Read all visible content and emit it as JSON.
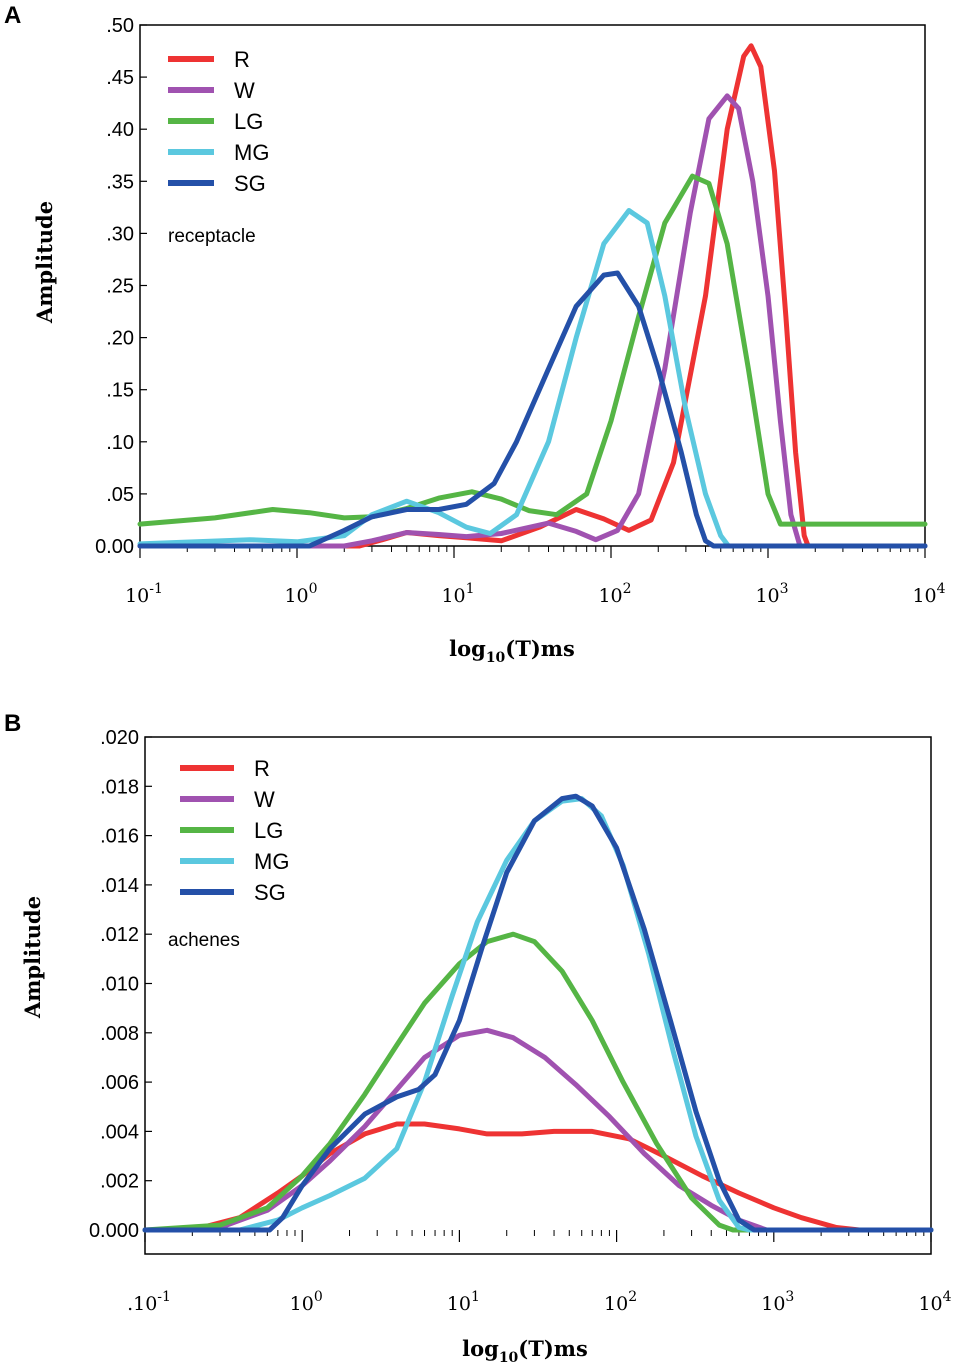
{
  "chart_data": [
    {
      "type": "line",
      "panel_label": "A",
      "title": "",
      "annotation": "receptacle",
      "xlabel": "log10(T)ms",
      "xlabel_base": "log",
      "xlabel_sub": "10",
      "xlabel_rest": "(T)ms",
      "ylabel": "Amplitude",
      "xscale": "log",
      "xlim": [
        0.1,
        10000
      ],
      "ylim": [
        0,
        0.5
      ],
      "x_ticks": [
        {
          "base": "10",
          "exp": "-1"
        },
        {
          "base": "10",
          "exp": "0"
        },
        {
          "base": "10",
          "exp": "1"
        },
        {
          "base": "10",
          "exp": "2"
        },
        {
          "base": "10",
          "exp": "3"
        },
        {
          "base": "10",
          "exp": "4"
        }
      ],
      "y_ticks": [
        {
          "v": 0,
          "label": "0.00"
        },
        {
          "v": 0.05,
          "label": ".05"
        },
        {
          "v": 0.1,
          "label": ".10"
        },
        {
          "v": 0.15,
          "label": ".15"
        },
        {
          "v": 0.2,
          "label": ".20"
        },
        {
          "v": 0.25,
          "label": ".25"
        },
        {
          "v": 0.3,
          "label": ".30"
        },
        {
          "v": 0.35,
          "label": ".35"
        },
        {
          "v": 0.4,
          "label": ".40"
        },
        {
          "v": 0.45,
          "label": ".45"
        },
        {
          "v": 0.5,
          "label": ".50"
        }
      ],
      "legend_position": "top-left",
      "series": [
        {
          "name": "R",
          "color": "#ee3333",
          "points": [
            [
              0.1,
              0
            ],
            [
              2.5,
              0
            ],
            [
              3.5,
              0.006
            ],
            [
              5,
              0.013
            ],
            [
              8,
              0.01
            ],
            [
              12,
              0.008
            ],
            [
              20,
              0.005
            ],
            [
              35,
              0.018
            ],
            [
              60,
              0.035
            ],
            [
              90,
              0.026
            ],
            [
              130,
              0.015
            ],
            [
              180,
              0.025
            ],
            [
              250,
              0.08
            ],
            [
              400,
              0.24
            ],
            [
              550,
              0.4
            ],
            [
              700,
              0.47
            ],
            [
              780,
              0.48
            ],
            [
              900,
              0.46
            ],
            [
              1100,
              0.36
            ],
            [
              1300,
              0.22
            ],
            [
              1500,
              0.09
            ],
            [
              1700,
              0.01
            ],
            [
              1800,
              0
            ],
            [
              10000,
              0
            ]
          ]
        },
        {
          "name": "W",
          "color": "#a052b0",
          "points": [
            [
              0.1,
              0
            ],
            [
              2,
              0
            ],
            [
              3,
              0.005
            ],
            [
              5,
              0.013
            ],
            [
              8,
              0.011
            ],
            [
              12,
              0.009
            ],
            [
              20,
              0.012
            ],
            [
              40,
              0.022
            ],
            [
              60,
              0.014
            ],
            [
              80,
              0.006
            ],
            [
              110,
              0.015
            ],
            [
              150,
              0.05
            ],
            [
              220,
              0.17
            ],
            [
              320,
              0.32
            ],
            [
              420,
              0.41
            ],
            [
              550,
              0.432
            ],
            [
              650,
              0.42
            ],
            [
              800,
              0.35
            ],
            [
              1000,
              0.24
            ],
            [
              1200,
              0.12
            ],
            [
              1400,
              0.03
            ],
            [
              1600,
              0
            ],
            [
              10000,
              0
            ]
          ]
        },
        {
          "name": "LG",
          "color": "#55b545",
          "points": [
            [
              0.1,
              0.021
            ],
            [
              0.3,
              0.027
            ],
            [
              0.7,
              0.035
            ],
            [
              1.2,
              0.032
            ],
            [
              2,
              0.027
            ],
            [
              3,
              0.028
            ],
            [
              5,
              0.036
            ],
            [
              8,
              0.046
            ],
            [
              13,
              0.052
            ],
            [
              20,
              0.045
            ],
            [
              30,
              0.034
            ],
            [
              45,
              0.03
            ],
            [
              70,
              0.05
            ],
            [
              100,
              0.12
            ],
            [
              150,
              0.22
            ],
            [
              220,
              0.31
            ],
            [
              330,
              0.355
            ],
            [
              420,
              0.348
            ],
            [
              550,
              0.29
            ],
            [
              750,
              0.17
            ],
            [
              1000,
              0.05
            ],
            [
              1200,
              0.021
            ],
            [
              10000,
              0.021
            ]
          ]
        },
        {
          "name": "MG",
          "color": "#5bc8df",
          "points": [
            [
              0.1,
              0.002
            ],
            [
              0.5,
              0.006
            ],
            [
              1,
              0.004
            ],
            [
              2,
              0.01
            ],
            [
              3,
              0.03
            ],
            [
              5,
              0.043
            ],
            [
              8,
              0.032
            ],
            [
              12,
              0.018
            ],
            [
              17,
              0.012
            ],
            [
              25,
              0.03
            ],
            [
              40,
              0.1
            ],
            [
              60,
              0.2
            ],
            [
              90,
              0.29
            ],
            [
              130,
              0.322
            ],
            [
              170,
              0.31
            ],
            [
              220,
              0.24
            ],
            [
              300,
              0.13
            ],
            [
              400,
              0.05
            ],
            [
              500,
              0.01
            ],
            [
              560,
              0
            ],
            [
              10000,
              0
            ]
          ]
        },
        {
          "name": "SG",
          "color": "#2450a8",
          "points": [
            [
              0.1,
              0
            ],
            [
              1.2,
              0
            ],
            [
              2,
              0.015
            ],
            [
              3,
              0.028
            ],
            [
              5,
              0.035
            ],
            [
              8,
              0.035
            ],
            [
              12,
              0.04
            ],
            [
              18,
              0.06
            ],
            [
              25,
              0.1
            ],
            [
              40,
              0.17
            ],
            [
              60,
              0.23
            ],
            [
              90,
              0.26
            ],
            [
              110,
              0.262
            ],
            [
              150,
              0.23
            ],
            [
              200,
              0.17
            ],
            [
              280,
              0.09
            ],
            [
              350,
              0.03
            ],
            [
              400,
              0.005
            ],
            [
              450,
              0
            ],
            [
              10000,
              0
            ]
          ]
        }
      ]
    },
    {
      "type": "line",
      "panel_label": "B",
      "title": "",
      "annotation": "achenes",
      "xlabel": "log10(T)ms",
      "xlabel_base": "log",
      "xlabel_sub": "10",
      "xlabel_rest": "(T)ms",
      "ylabel": "Amplitude",
      "xscale": "log",
      "xlim": [
        0.1,
        10000
      ],
      "ylim": [
        0,
        0.02
      ],
      "x_ticks": [
        {
          "base": ".10",
          "exp": "-1"
        },
        {
          "base": "10",
          "exp": "0"
        },
        {
          "base": "10",
          "exp": "1"
        },
        {
          "base": "10",
          "exp": "2"
        },
        {
          "base": "10",
          "exp": "3"
        },
        {
          "base": "10",
          "exp": "4"
        }
      ],
      "y_ticks": [
        {
          "v": 0,
          "label": "0.000"
        },
        {
          "v": 0.002,
          "label": ".002"
        },
        {
          "v": 0.004,
          "label": ".004"
        },
        {
          "v": 0.006,
          "label": ".006"
        },
        {
          "v": 0.008,
          "label": ".008"
        },
        {
          "v": 0.01,
          "label": ".010"
        },
        {
          "v": 0.012,
          "label": ".012"
        },
        {
          "v": 0.014,
          "label": ".014"
        },
        {
          "v": 0.016,
          "label": ".016"
        },
        {
          "v": 0.018,
          "label": ".018"
        },
        {
          "v": 0.02,
          "label": ".020"
        }
      ],
      "legend_position": "top-left",
      "series": [
        {
          "name": "R",
          "color": "#ee3333",
          "points": [
            [
              0.1,
              0
            ],
            [
              0.2,
              0
            ],
            [
              0.4,
              0.0005
            ],
            [
              0.7,
              0.0015
            ],
            [
              1,
              0.0022
            ],
            [
              1.5,
              0.0031
            ],
            [
              2.5,
              0.0039
            ],
            [
              4,
              0.0043
            ],
            [
              6,
              0.0043
            ],
            [
              10,
              0.0041
            ],
            [
              15,
              0.0039
            ],
            [
              25,
              0.0039
            ],
            [
              40,
              0.004
            ],
            [
              70,
              0.004
            ],
            [
              120,
              0.0037
            ],
            [
              200,
              0.003
            ],
            [
              350,
              0.0022
            ],
            [
              600,
              0.0015
            ],
            [
              1000,
              0.0009
            ],
            [
              1500,
              0.0005
            ],
            [
              2500,
              0.0001
            ],
            [
              3500,
              0
            ],
            [
              10000,
              0
            ]
          ]
        },
        {
          "name": "W",
          "color": "#a052b0",
          "points": [
            [
              0.1,
              0
            ],
            [
              0.3,
              0.0001
            ],
            [
              0.6,
              0.0008
            ],
            [
              1,
              0.0018
            ],
            [
              1.5,
              0.0028
            ],
            [
              2.5,
              0.0042
            ],
            [
              4,
              0.0057
            ],
            [
              6,
              0.007
            ],
            [
              10,
              0.0079
            ],
            [
              15,
              0.0081
            ],
            [
              22,
              0.0078
            ],
            [
              35,
              0.007
            ],
            [
              55,
              0.0059
            ],
            [
              90,
              0.0046
            ],
            [
              150,
              0.0031
            ],
            [
              250,
              0.0018
            ],
            [
              400,
              0.001
            ],
            [
              600,
              0.0004
            ],
            [
              900,
              0
            ],
            [
              10000,
              0
            ]
          ]
        },
        {
          "name": "LG",
          "color": "#55b545",
          "points": [
            [
              0.1,
              0
            ],
            [
              0.3,
              0.0002
            ],
            [
              0.6,
              0.0009
            ],
            [
              1,
              0.0022
            ],
            [
              1.5,
              0.0035
            ],
            [
              2.5,
              0.0055
            ],
            [
              4,
              0.0075
            ],
            [
              6,
              0.0092
            ],
            [
              10,
              0.0108
            ],
            [
              15,
              0.0117
            ],
            [
              22,
              0.012
            ],
            [
              30,
              0.0117
            ],
            [
              45,
              0.0105
            ],
            [
              70,
              0.0085
            ],
            [
              110,
              0.006
            ],
            [
              180,
              0.0035
            ],
            [
              300,
              0.0013
            ],
            [
              450,
              0.0002
            ],
            [
              550,
              0
            ],
            [
              10000,
              0
            ]
          ]
        },
        {
          "name": "MG",
          "color": "#5bc8df",
          "points": [
            [
              0.1,
              0
            ],
            [
              0.4,
              0
            ],
            [
              0.7,
              0.0004
            ],
            [
              1,
              0.0009
            ],
            [
              1.5,
              0.0014
            ],
            [
              2.5,
              0.0021
            ],
            [
              4,
              0.0033
            ],
            [
              6,
              0.006
            ],
            [
              9,
              0.0095
            ],
            [
              13,
              0.0125
            ],
            [
              20,
              0.015
            ],
            [
              30,
              0.0166
            ],
            [
              45,
              0.0174
            ],
            [
              60,
              0.0175
            ],
            [
              80,
              0.0168
            ],
            [
              110,
              0.0148
            ],
            [
              160,
              0.0112
            ],
            [
              230,
              0.0072
            ],
            [
              320,
              0.0038
            ],
            [
              450,
              0.0012
            ],
            [
              600,
              0.0001
            ],
            [
              700,
              0
            ],
            [
              10000,
              0
            ]
          ]
        },
        {
          "name": "SG",
          "color": "#2450a8",
          "points": [
            [
              0.1,
              0
            ],
            [
              0.62,
              0
            ],
            [
              0.75,
              0.0005
            ],
            [
              1,
              0.0018
            ],
            [
              1.5,
              0.0033
            ],
            [
              2.5,
              0.0047
            ],
            [
              4,
              0.0054
            ],
            [
              5.5,
              0.0057
            ],
            [
              7,
              0.0063
            ],
            [
              10,
              0.0085
            ],
            [
              14,
              0.0115
            ],
            [
              20,
              0.0145
            ],
            [
              30,
              0.0166
            ],
            [
              45,
              0.0175
            ],
            [
              55,
              0.0176
            ],
            [
              70,
              0.0172
            ],
            [
              100,
              0.0155
            ],
            [
              150,
              0.0122
            ],
            [
              220,
              0.0085
            ],
            [
              320,
              0.0048
            ],
            [
              450,
              0.002
            ],
            [
              600,
              0.0004
            ],
            [
              750,
              0
            ],
            [
              10000,
              0
            ]
          ]
        }
      ]
    }
  ]
}
